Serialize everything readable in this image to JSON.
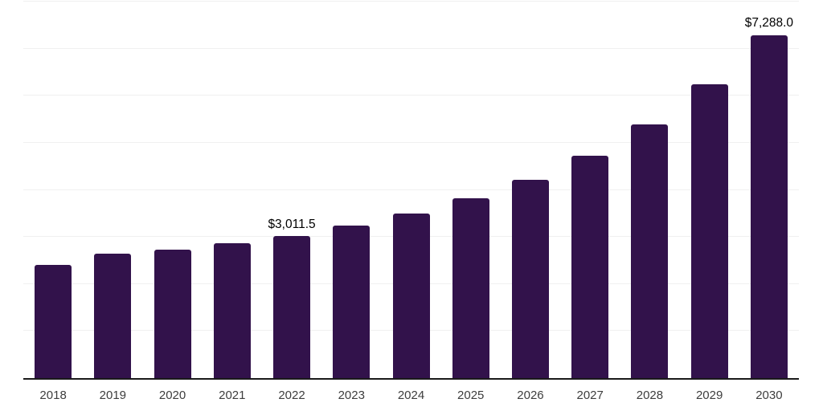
{
  "chart_data": {
    "type": "bar",
    "title": "",
    "xlabel": "",
    "ylabel": "",
    "categories": [
      "2018",
      "2019",
      "2020",
      "2021",
      "2022",
      "2023",
      "2024",
      "2025",
      "2026",
      "2027",
      "2028",
      "2029",
      "2030"
    ],
    "values": [
      2400,
      2650,
      2725,
      2860,
      3011.5,
      3235,
      3490,
      3820,
      4215,
      4725,
      5395,
      6245,
      7288
    ],
    "value_labels": {
      "2022": "$3,011.5",
      "2030": "$7,288.0"
    },
    "ylim": [
      0,
      8000
    ],
    "gridline_interval": 1000,
    "grid": true,
    "legend": false,
    "colors": {
      "bar": "#32124B",
      "axis_line": "#1a1a1a",
      "gridline": "#f0f0f0",
      "tick_label": "#3d3d3d",
      "value_label": "#000000",
      "background": "#ffffff"
    }
  }
}
